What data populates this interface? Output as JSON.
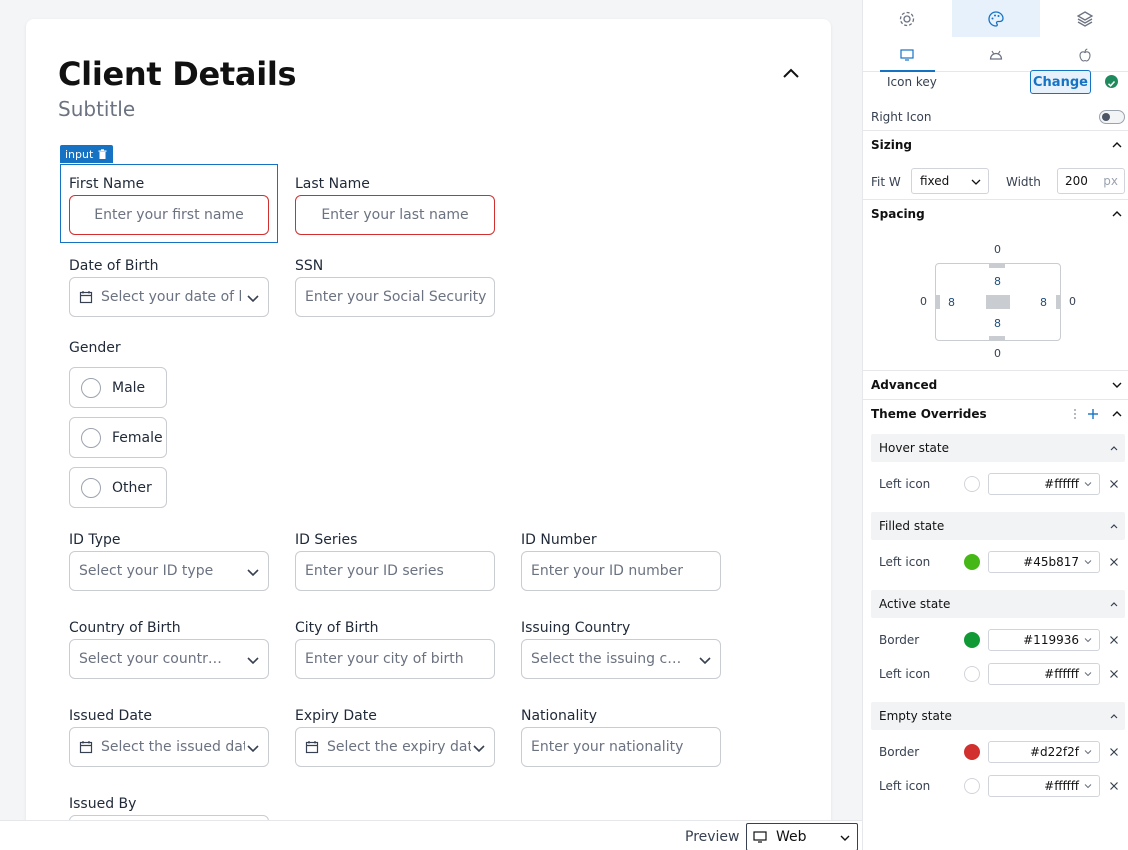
{
  "form": {
    "title": "Client Details",
    "subtitle": "Subtitle",
    "selection_tag": "input",
    "first_name": {
      "label": "First Name",
      "placeholder": "Enter your first name"
    },
    "last_name": {
      "label": "Last Name",
      "placeholder": "Enter your last name"
    },
    "dob": {
      "label": "Date of Birth",
      "placeholder": "Select your date of bir"
    },
    "ssn": {
      "label": "SSN",
      "placeholder": "Enter your Social Security Nu"
    },
    "gender": {
      "label": "Gender",
      "options": [
        "Male",
        "Female",
        "Other"
      ]
    },
    "id_type": {
      "label": "ID Type",
      "placeholder": "Select your ID type"
    },
    "id_series": {
      "label": "ID Series",
      "placeholder": "Enter your ID series"
    },
    "id_number": {
      "label": "ID Number",
      "placeholder": "Enter your ID number"
    },
    "country_of_birth": {
      "label": "Country of Birth",
      "placeholder": "Select your country of ..."
    },
    "city_of_birth": {
      "label": "City of Birth",
      "placeholder": "Enter your city of birth"
    },
    "issuing_country": {
      "label": "Issuing Country",
      "placeholder": "Select the issuing coun..."
    },
    "issued_date": {
      "label": "Issued Date",
      "placeholder": "Select the issued date"
    },
    "expiry_date": {
      "label": "Expiry Date",
      "placeholder": "Select the expiry date"
    },
    "nationality": {
      "label": "Nationality",
      "placeholder": "Enter your nationality"
    },
    "issued_by": {
      "label": "Issued By"
    }
  },
  "bottombar": {
    "preview_label": "Preview",
    "preview_value": "Web"
  },
  "panel": {
    "icon_key_label": "Icon key",
    "change_label": "Change",
    "right_icon_label": "Right Icon",
    "sizing": {
      "title": "Sizing",
      "fit_label": "Fit W",
      "fit_value": "fixed",
      "width_label": "Width",
      "width_value": "200",
      "unit": "px"
    },
    "spacing": {
      "title": "Spacing",
      "margin_top": "0",
      "margin_right": "0",
      "margin_bottom": "0",
      "margin_left": "0",
      "padding_top": "8",
      "padding_right": "8",
      "padding_bottom": "8",
      "padding_left": "8"
    },
    "advanced_title": "Advanced",
    "theme_overrides_title": "Theme Overrides",
    "states": [
      {
        "title": "Hover state",
        "rows": [
          {
            "label": "Left icon",
            "value": "#ffffff",
            "color": "#ffffff"
          }
        ]
      },
      {
        "title": "Filled state",
        "rows": [
          {
            "label": "Left icon",
            "value": "#45b817",
            "color": "#45b817"
          }
        ]
      },
      {
        "title": "Active state",
        "rows": [
          {
            "label": "Border",
            "value": "#119936",
            "color": "#119936"
          },
          {
            "label": "Left icon",
            "value": "#ffffff",
            "color": "#ffffff"
          }
        ]
      },
      {
        "title": "Empty state",
        "rows": [
          {
            "label": "Border",
            "value": "#d22f2f",
            "color": "#d22f2f"
          },
          {
            "label": "Left icon",
            "value": "#ffffff",
            "color": "#ffffff"
          }
        ]
      }
    ]
  },
  "colors": {
    "accent": "#1673c4",
    "error": "#d22f2f",
    "success": "#1f8a5b"
  }
}
